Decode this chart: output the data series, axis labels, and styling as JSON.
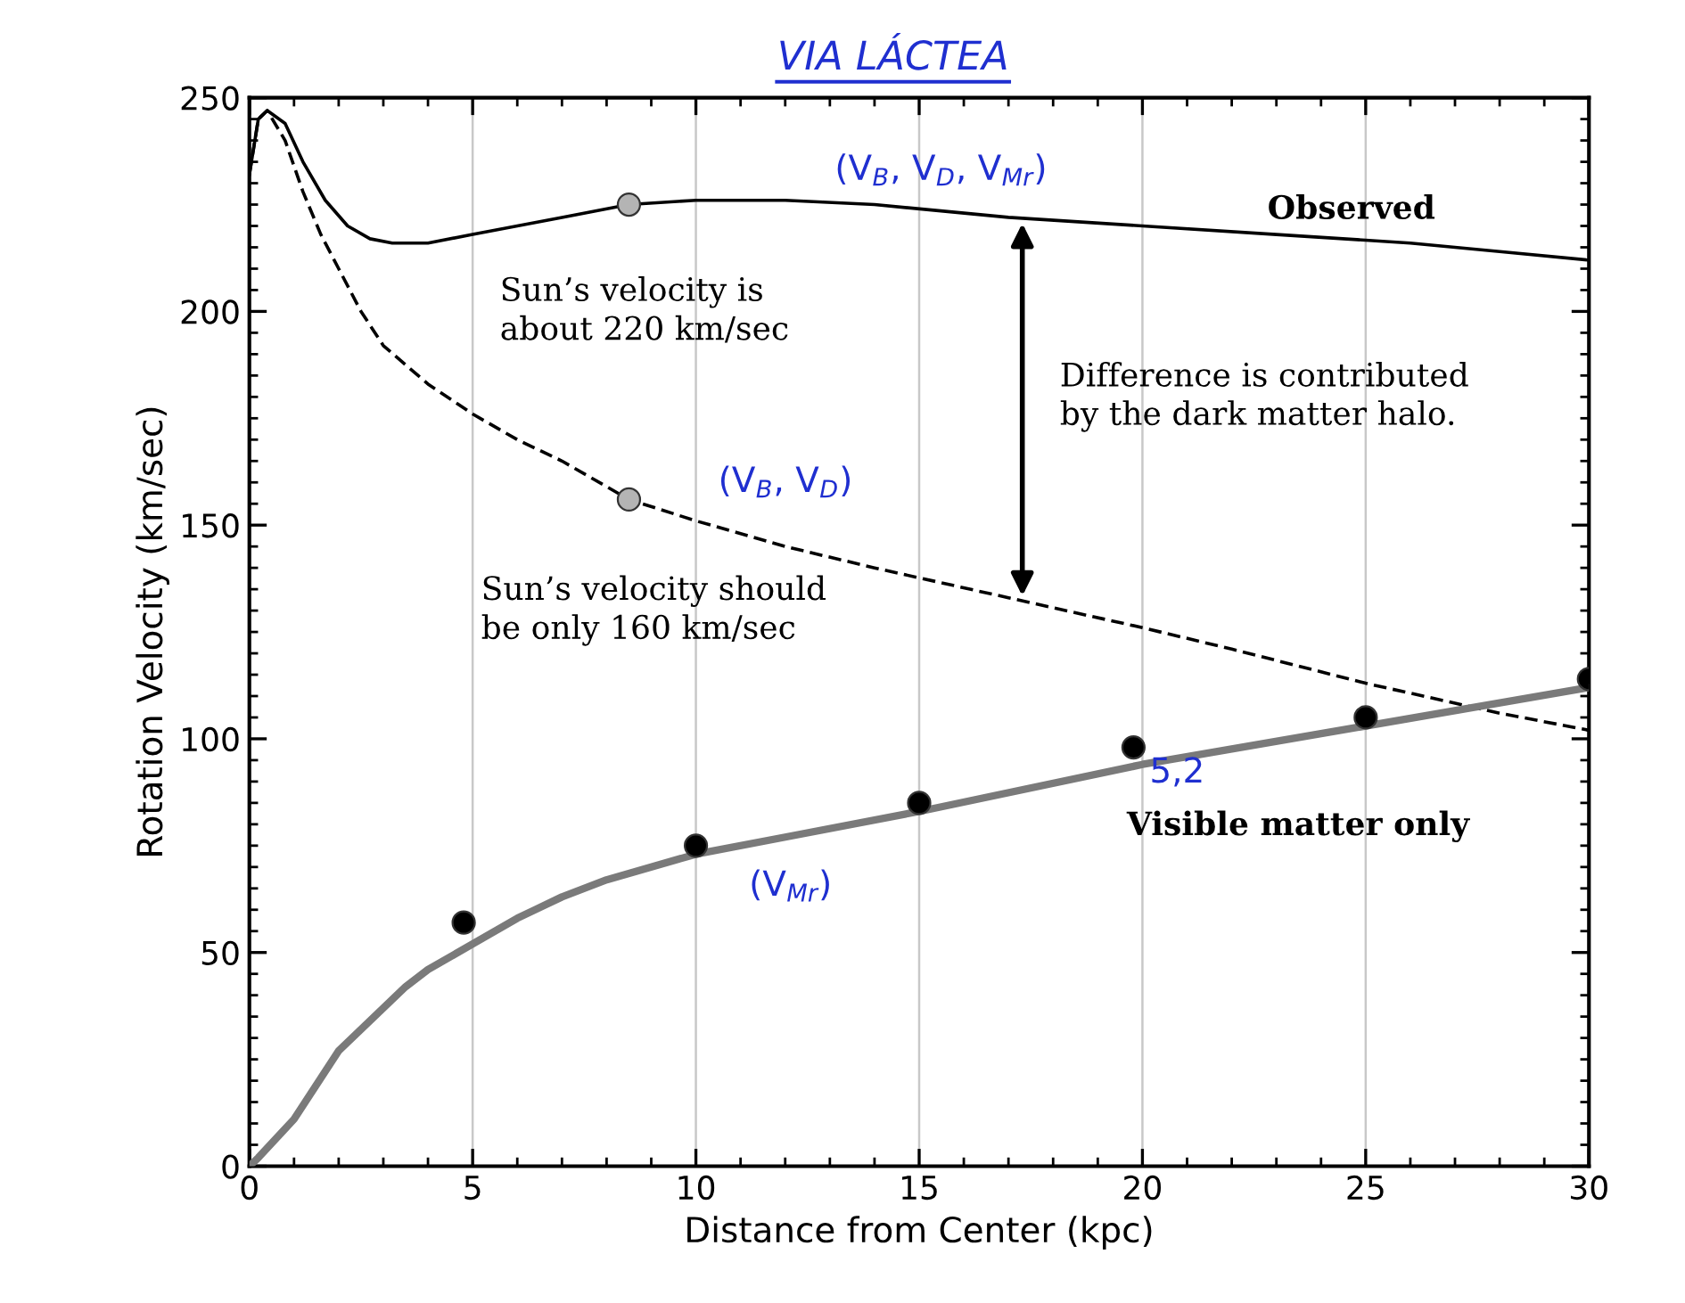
{
  "chart_data": {
    "type": "line",
    "title": "VIA LÁCTEA",
    "xlabel": "Distance from Center (kpc)",
    "ylabel": "Rotation Velocity (km/sec)",
    "xlim": [
      0,
      30
    ],
    "ylim": [
      0,
      250
    ],
    "xticks": [
      0,
      5,
      10,
      15,
      20,
      25,
      30
    ],
    "yticks": [
      0,
      50,
      100,
      150,
      200,
      250
    ],
    "grid": "x",
    "legend": false,
    "series": [
      {
        "color": "#000000",
        "line_style": "solid",
        "x": [
          0,
          0.2,
          0.4,
          0.8,
          1.2,
          1.7,
          2.2,
          2.7,
          3.2,
          4,
          5,
          6,
          7,
          8.5,
          10,
          12,
          14,
          17,
          20,
          23,
          26,
          28,
          30
        ],
        "values": [
          232,
          245,
          247,
          244,
          235,
          226,
          220,
          217,
          216,
          216,
          218,
          220,
          222,
          225,
          226,
          226,
          225,
          222,
          220,
          218,
          216,
          214,
          212
        ]
      },
      {
        "color": "#000000",
        "line_style": "dashed",
        "x": [
          0,
          0.2,
          0.4,
          0.8,
          1.2,
          1.6,
          2,
          2.5,
          3,
          4,
          5,
          6,
          7,
          8.5,
          10,
          12,
          14,
          17,
          20,
          22,
          25,
          28,
          30
        ],
        "values": [
          232,
          245,
          247,
          240,
          228,
          218,
          210,
          200,
          192,
          183,
          176,
          170,
          165,
          156,
          151,
          145,
          140,
          133,
          126,
          121,
          113,
          106,
          102
        ]
      },
      {
        "color": "#7a7a7a",
        "line_style": "solid",
        "x": [
          0,
          0.2,
          1,
          2,
          3,
          3.5,
          4,
          5,
          6,
          7,
          8,
          10,
          12,
          15,
          20,
          25,
          30
        ],
        "values": [
          0,
          2,
          11,
          27,
          37,
          42,
          46,
          52,
          58,
          63,
          67,
          73,
          77,
          83,
          94,
          103,
          112
        ]
      },
      {
        "type": "scatter",
        "color": "#000000",
        "marker": "circle",
        "x": [
          4.8,
          10,
          15,
          19.8,
          25,
          30
        ],
        "values": [
          57,
          75,
          85,
          98,
          105,
          114
        ]
      },
      {
        "type": "scatter",
        "color": "#b4b4b4",
        "marker": "circle",
        "x": [
          8.5,
          8.5
        ],
        "values": [
          225,
          156
        ]
      }
    ],
    "annotations": [
      "Observed",
      "Sun’s velocity is\nabout 220 km/sec",
      "Difference is contributed\nby the dark matter halo.",
      "Sun’s velocity should\nbe only 160 km/sec",
      "Visible matter only",
      "(V$_{B}$, V$_{D}$, V$_{Mr}$)",
      "(V$_{B}$, V$_{D}$)",
      "(V$_{Mr}$)",
      "5,2"
    ]
  }
}
